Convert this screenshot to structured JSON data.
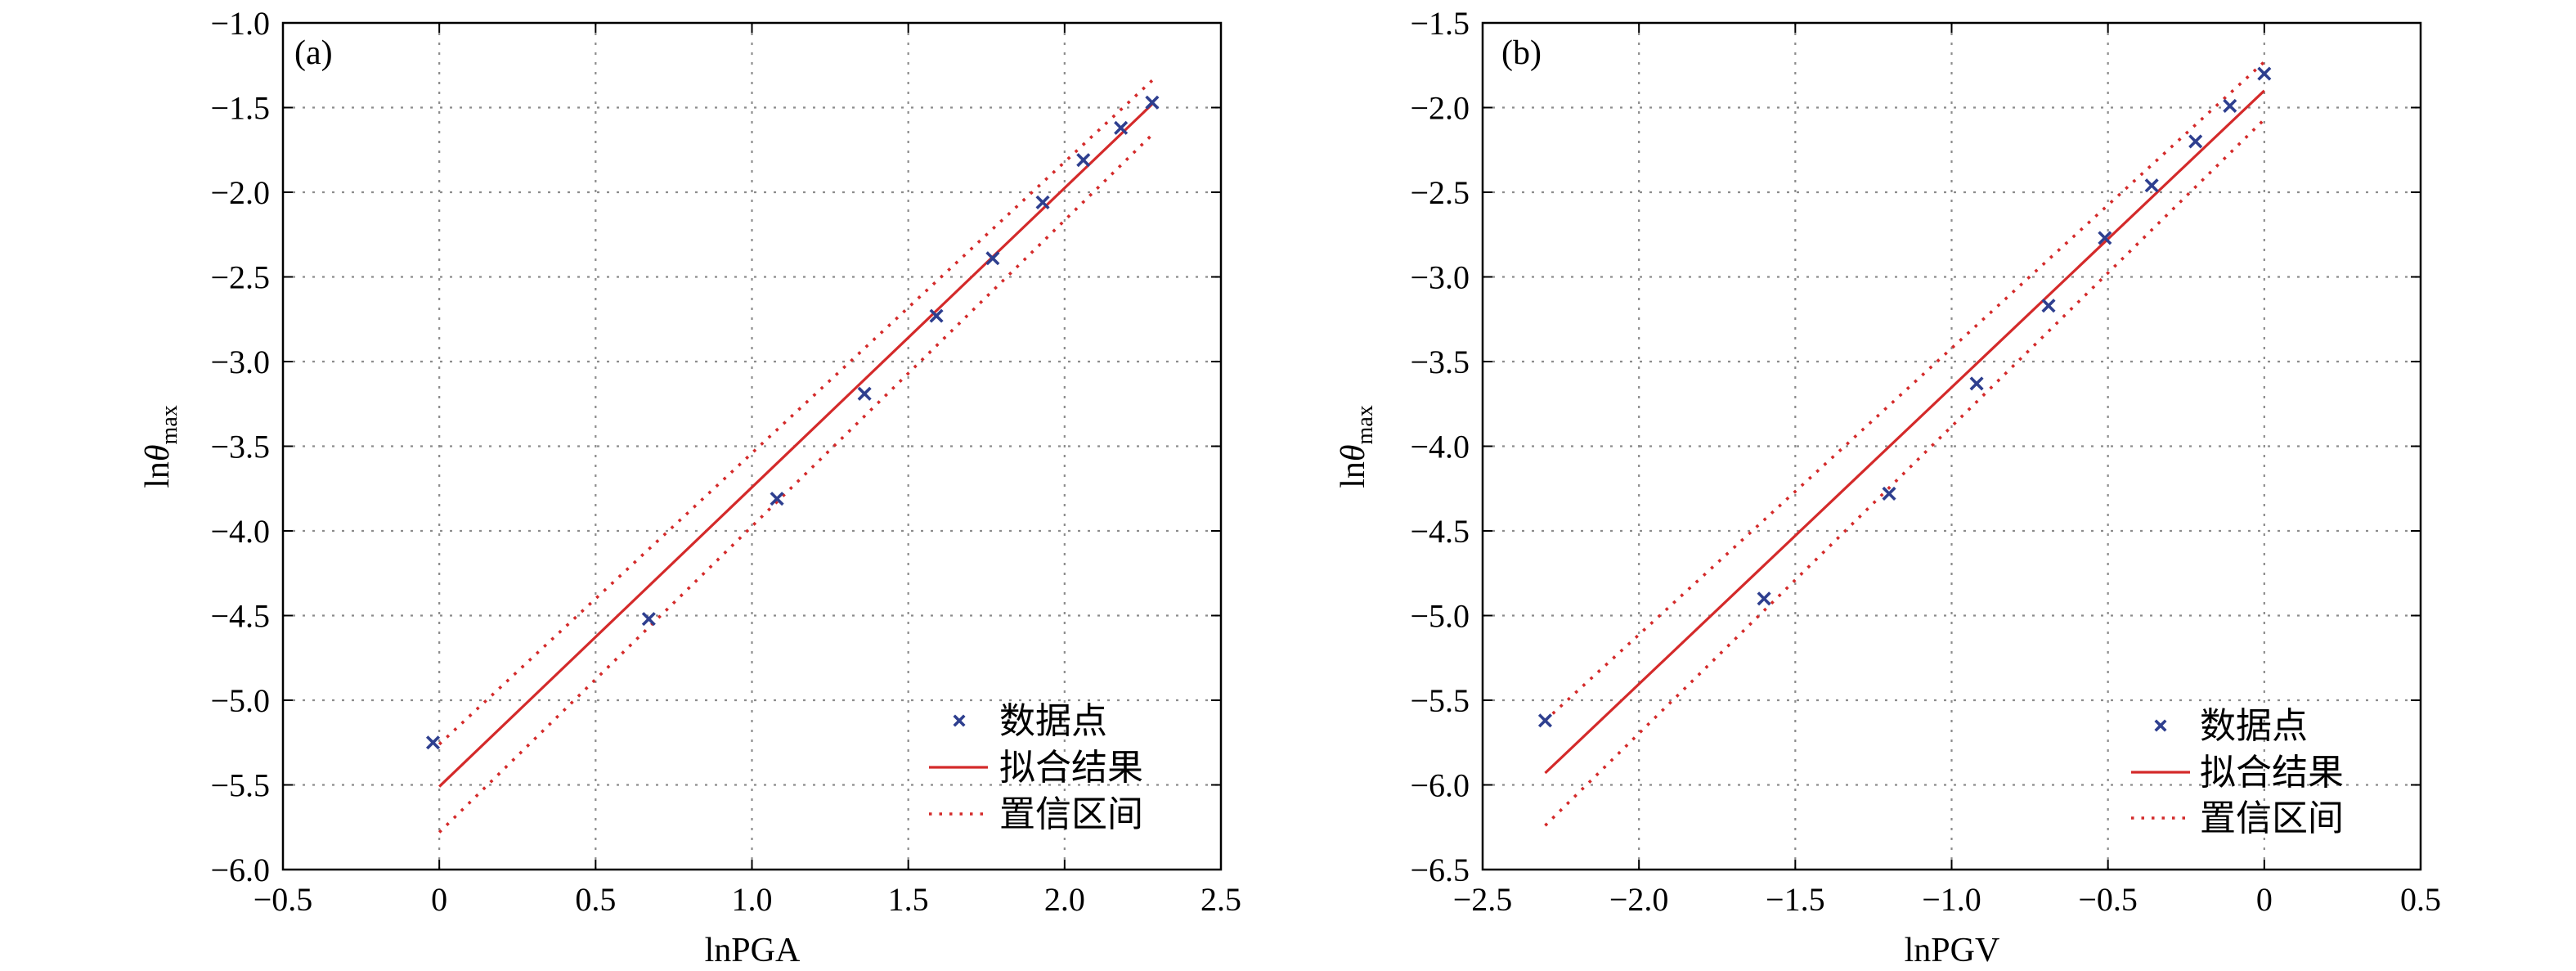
{
  "chart_data": [
    {
      "type": "scatter",
      "panel_label": "(a)",
      "xlabel": "lnPGA",
      "ylabel": {
        "base": "ln",
        "symbol": "θ",
        "subscript": "max"
      },
      "xlim": [
        -0.5,
        2.5
      ],
      "ylim": [
        -6.0,
        -1.0
      ],
      "x_ticks": [
        -0.5,
        0.0,
        0.5,
        1.0,
        1.5,
        2.0,
        2.5
      ],
      "x_tick_labels": [
        "−0.5",
        "0",
        "0.5",
        "1.0",
        "1.5",
        "2.0",
        "2.5"
      ],
      "y_ticks": [
        -6.0,
        -5.5,
        -5.0,
        -4.5,
        -4.0,
        -3.5,
        -3.0,
        -2.5,
        -2.0,
        -1.5,
        -1.0
      ],
      "y_tick_labels": [
        "−6.0",
        "−5.5",
        "−5.0",
        "−4.5",
        "−4.0",
        "−3.5",
        "−3.0",
        "−2.5",
        "−2.0",
        "−1.5",
        "−1.0"
      ],
      "grid": true,
      "legend_position": "bottom-right",
      "series": [
        {
          "name": "数据点",
          "kind": "points",
          "color": "#2e3f8f",
          "marker": "x",
          "x": [
            -0.02,
            0.67,
            1.08,
            1.36,
            1.59,
            1.77,
            1.93,
            2.06,
            2.18,
            2.28
          ],
          "y": [
            -5.25,
            -4.52,
            -3.81,
            -3.19,
            -2.73,
            -2.39,
            -2.06,
            -1.81,
            -1.62,
            -1.47
          ]
        },
        {
          "name": "拟合结果",
          "kind": "line",
          "color": "#d42a2a",
          "x": [
            0.0,
            2.28
          ],
          "y": [
            -5.51,
            -1.48
          ]
        },
        {
          "name": "置信区间",
          "kind": "interval",
          "color": "#d42a2a",
          "upper": {
            "x": [
              0.0,
              2.28
            ],
            "y": [
              -5.26,
              -1.34
            ]
          },
          "lower": {
            "x": [
              0.0,
              2.28
            ],
            "y": [
              -5.78,
              -1.66
            ]
          }
        }
      ]
    },
    {
      "type": "scatter",
      "panel_label": "(b)",
      "xlabel": "lnPGV",
      "ylabel": {
        "base": "ln",
        "symbol": "θ",
        "subscript": "max"
      },
      "xlim": [
        -2.5,
        0.5
      ],
      "ylim": [
        -6.5,
        -1.5
      ],
      "x_ticks": [
        -2.5,
        -2.0,
        -1.5,
        -1.0,
        -0.5,
        0.0,
        0.5
      ],
      "x_tick_labels": [
        "−2.5",
        "−2.0",
        "−1.5",
        "−1.0",
        "−0.5",
        "0",
        "0.5"
      ],
      "y_ticks": [
        -6.5,
        -6.0,
        -5.5,
        -5.0,
        -4.5,
        -4.0,
        -3.5,
        -3.0,
        -2.5,
        -2.0,
        -1.5
      ],
      "y_tick_labels": [
        "−6.5",
        "−6.0",
        "−5.5",
        "−5.0",
        "−4.5",
        "−4.0",
        "−3.5",
        "−3.0",
        "−2.5",
        "−2.0",
        "−1.5"
      ],
      "grid": true,
      "legend_position": "bottom-right",
      "series": [
        {
          "name": "数据点",
          "kind": "points",
          "color": "#2e3f8f",
          "marker": "x",
          "x": [
            -2.3,
            -1.6,
            -1.2,
            -0.92,
            -0.69,
            -0.51,
            -0.36,
            -0.22,
            -0.11,
            0.0
          ],
          "y": [
            -5.62,
            -4.9,
            -4.28,
            -3.63,
            -3.17,
            -2.77,
            -2.46,
            -2.2,
            -1.99,
            -1.8
          ]
        },
        {
          "name": "拟合结果",
          "kind": "line",
          "color": "#d42a2a",
          "x": [
            -2.3,
            0.0
          ],
          "y": [
            -5.93,
            -1.9
          ]
        },
        {
          "name": "置信区间",
          "kind": "interval",
          "color": "#d42a2a",
          "upper": {
            "x": [
              -2.3,
              0.0
            ],
            "y": [
              -5.62,
              -1.73
            ]
          },
          "lower": {
            "x": [
              -2.3,
              0.0
            ],
            "y": [
              -6.24,
              -2.07
            ]
          }
        }
      ]
    }
  ]
}
